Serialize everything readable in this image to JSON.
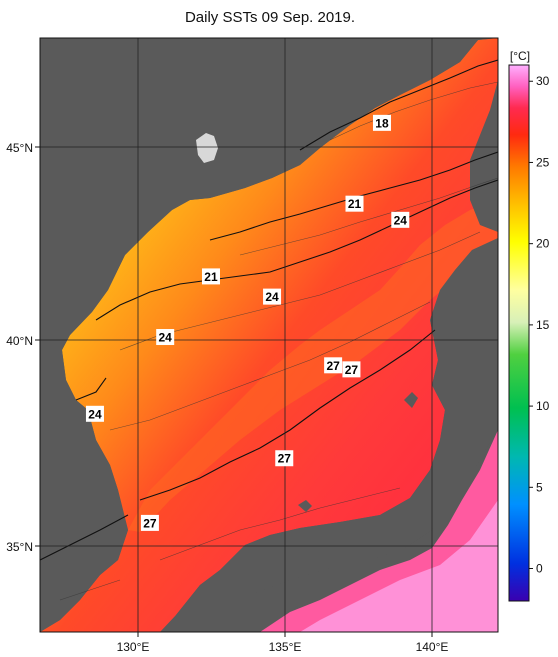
{
  "title": "Daily SSTs 09 Sep. 2019.",
  "map": {
    "lon_range": [
      127,
      142
    ],
    "lat_range": [
      33,
      47.7
    ],
    "lon_ticks": [
      {
        "value": 130,
        "label": "130°E"
      },
      {
        "value": 135,
        "label": "135°E"
      },
      {
        "value": 140,
        "label": "140°E"
      }
    ],
    "lat_ticks": [
      {
        "value": 35,
        "label": "35°N"
      },
      {
        "value": 40,
        "label": "40°N"
      },
      {
        "value": 45,
        "label": "45°N"
      }
    ],
    "land_color": "#5a5a5a",
    "grid_color": "#222222"
  },
  "colorbar": {
    "unit": "[°C]",
    "range": [
      -2,
      31
    ],
    "ticks": [
      "0",
      "5",
      "10",
      "15",
      "20",
      "25",
      "30"
    ],
    "tick_values": [
      0,
      5,
      10,
      15,
      20,
      25,
      30
    ],
    "colors": [
      "#3a00b0",
      "#0040ff",
      "#00a0ff",
      "#00c8a0",
      "#00c040",
      "#60d040",
      "#d0f0a0",
      "#ffffa0",
      "#ffff00",
      "#ffc000",
      "#ff8000",
      "#ff3000",
      "#ff2040",
      "#ff60c0",
      "#ffa0ff"
    ]
  },
  "contour_labels": [
    {
      "text": "18",
      "lon": 138.2,
      "lat": 45.6
    },
    {
      "text": "21",
      "lon": 137.3,
      "lat": 43.6
    },
    {
      "text": "24",
      "lon": 138.8,
      "lat": 43.2
    },
    {
      "text": "21",
      "lon": 132.6,
      "lat": 41.8
    },
    {
      "text": "24",
      "lon": 134.6,
      "lat": 41.3
    },
    {
      "text": "24",
      "lon": 131.1,
      "lat": 40.3
    },
    {
      "text": "27",
      "lon": 136.6,
      "lat": 39.6
    },
    {
      "text": "27",
      "lon": 137.2,
      "lat": 39.5
    },
    {
      "text": "24",
      "lon": 128.8,
      "lat": 38.4
    },
    {
      "text": "27",
      "lon": 135.0,
      "lat": 37.3
    },
    {
      "text": "27",
      "lon": 130.6,
      "lat": 35.7
    }
  ]
}
